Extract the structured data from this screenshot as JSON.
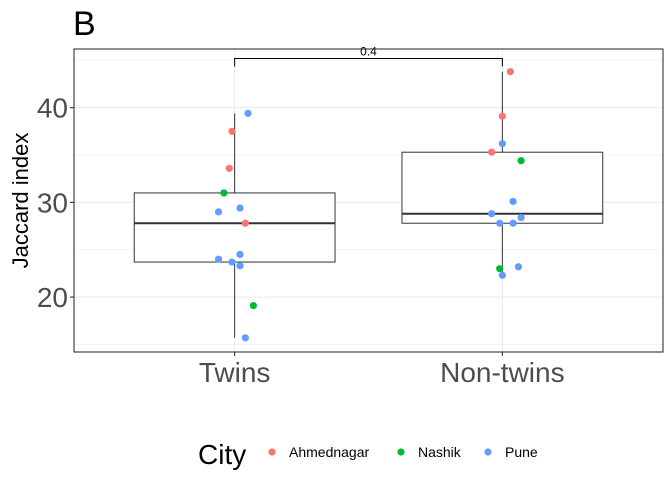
{
  "chart_data": {
    "type": "box",
    "panel_label": "B",
    "title": "",
    "xlabel": "",
    "ylabel": "Jaccard index",
    "categories": [
      "Twins",
      "Non-twins"
    ],
    "yticks": [
      20,
      30,
      40
    ],
    "ylim": [
      14.2,
      46.2
    ],
    "grid": true,
    "legend": {
      "title": "City",
      "position": "bottom",
      "entries": [
        {
          "name": "Ahmednagar",
          "color": "#F8766D"
        },
        {
          "name": "Nashik",
          "color": "#00BA38"
        },
        {
          "name": "Pune",
          "color": "#619CFF"
        }
      ]
    },
    "comparison": {
      "label": "0.4",
      "from": "Twins",
      "to": "Non-twins"
    },
    "boxes": [
      {
        "category": "Twins",
        "min": 15.7,
        "q1": 23.7,
        "median": 27.8,
        "q3": 31.0,
        "max": 39.4
      },
      {
        "category": "Non-twins",
        "min": 22.3,
        "q1": 27.8,
        "median": 28.8,
        "q3": 35.3,
        "max": 43.8
      }
    ],
    "points": [
      {
        "category": "Twins",
        "city": "Pune",
        "jitter": 0.05,
        "y": 39.4
      },
      {
        "category": "Twins",
        "city": "Ahmednagar",
        "jitter": -0.01,
        "y": 37.5
      },
      {
        "category": "Twins",
        "city": "Ahmednagar",
        "jitter": -0.02,
        "y": 33.6
      },
      {
        "category": "Twins",
        "city": "Nashik",
        "jitter": -0.04,
        "y": 31.0
      },
      {
        "category": "Twins",
        "city": "Pune",
        "jitter": -0.06,
        "y": 29.0
      },
      {
        "category": "Twins",
        "city": "Pune",
        "jitter": 0.02,
        "y": 29.4
      },
      {
        "category": "Twins",
        "city": "Ahmednagar",
        "jitter": 0.04,
        "y": 27.8
      },
      {
        "category": "Twins",
        "city": "Pune",
        "jitter": 0.02,
        "y": 24.5
      },
      {
        "category": "Twins",
        "city": "Pune",
        "jitter": -0.06,
        "y": 24.0
      },
      {
        "category": "Twins",
        "city": "Pune",
        "jitter": -0.01,
        "y": 23.7
      },
      {
        "category": "Twins",
        "city": "Pune",
        "jitter": 0.02,
        "y": 23.3
      },
      {
        "category": "Twins",
        "city": "Nashik",
        "jitter": 0.07,
        "y": 19.1
      },
      {
        "category": "Twins",
        "city": "Pune",
        "jitter": 0.04,
        "y": 15.7
      },
      {
        "category": "Non-twins",
        "city": "Ahmednagar",
        "jitter": 0.03,
        "y": 43.8
      },
      {
        "category": "Non-twins",
        "city": "Ahmednagar",
        "jitter": 0.0,
        "y": 39.1
      },
      {
        "category": "Non-twins",
        "city": "Pune",
        "jitter": 0.0,
        "y": 36.2
      },
      {
        "category": "Non-twins",
        "city": "Ahmednagar",
        "jitter": -0.04,
        "y": 35.3
      },
      {
        "category": "Non-twins",
        "city": "Nashik",
        "jitter": 0.07,
        "y": 34.4
      },
      {
        "category": "Non-twins",
        "city": "Pune",
        "jitter": 0.04,
        "y": 30.1
      },
      {
        "category": "Non-twins",
        "city": "Pune",
        "jitter": -0.04,
        "y": 28.8
      },
      {
        "category": "Non-twins",
        "city": "Pune",
        "jitter": 0.07,
        "y": 28.4
      },
      {
        "category": "Non-twins",
        "city": "Pune",
        "jitter": -0.01,
        "y": 27.8
      },
      {
        "category": "Non-twins",
        "city": "Pune",
        "jitter": 0.04,
        "y": 27.8
      },
      {
        "category": "Non-twins",
        "city": "Nashik",
        "jitter": -0.01,
        "y": 23.0
      },
      {
        "category": "Non-twins",
        "city": "Pune",
        "jitter": 0.06,
        "y": 23.2
      },
      {
        "category": "Non-twins",
        "city": "Pune",
        "jitter": 0.0,
        "y": 22.3
      }
    ]
  }
}
